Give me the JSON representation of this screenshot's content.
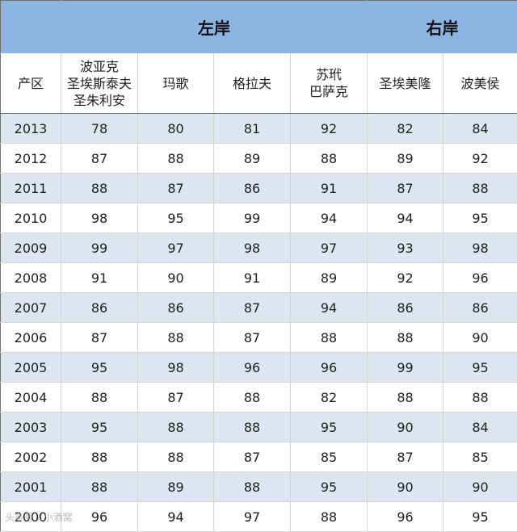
{
  "chart_data": {
    "type": "table",
    "groups": [
      {
        "label": "",
        "span": 1
      },
      {
        "label": "左岸",
        "span": 4
      },
      {
        "label": "右岸",
        "span": 2
      }
    ],
    "columns": [
      "产区",
      "波亚克\n圣埃斯泰夫\n圣朱利安",
      "玛歌",
      "格拉夫",
      "苏玳\n巴萨克",
      "圣埃美隆",
      "波美侯"
    ],
    "rows": [
      [
        "2013",
        "78",
        "80",
        "81",
        "92",
        "82",
        "84"
      ],
      [
        "2012",
        "87",
        "88",
        "89",
        "88",
        "89",
        "92"
      ],
      [
        "2011",
        "88",
        "87",
        "86",
        "91",
        "87",
        "88"
      ],
      [
        "2010",
        "98",
        "95",
        "99",
        "94",
        "94",
        "95"
      ],
      [
        "2009",
        "99",
        "97",
        "98",
        "97",
        "93",
        "98"
      ],
      [
        "2008",
        "91",
        "90",
        "91",
        "89",
        "92",
        "96"
      ],
      [
        "2007",
        "86",
        "86",
        "87",
        "94",
        "86",
        "86"
      ],
      [
        "2006",
        "87",
        "88",
        "87",
        "88",
        "88",
        "90"
      ],
      [
        "2005",
        "95",
        "98",
        "96",
        "96",
        "99",
        "95"
      ],
      [
        "2004",
        "88",
        "87",
        "88",
        "82",
        "88",
        "88"
      ],
      [
        "2003",
        "95",
        "88",
        "88",
        "95",
        "90",
        "84"
      ],
      [
        "2002",
        "88",
        "88",
        "87",
        "85",
        "87",
        "85"
      ],
      [
        "2001",
        "88",
        "89",
        "88",
        "95",
        "90",
        "90"
      ],
      [
        "2000",
        "96",
        "94",
        "97",
        "88",
        "96",
        "95"
      ]
    ]
  },
  "watermark": "头条号 / 小酒窝",
  "colors": {
    "header_bg": "#8db4e2",
    "stripe_bg": "#dce6f1"
  }
}
